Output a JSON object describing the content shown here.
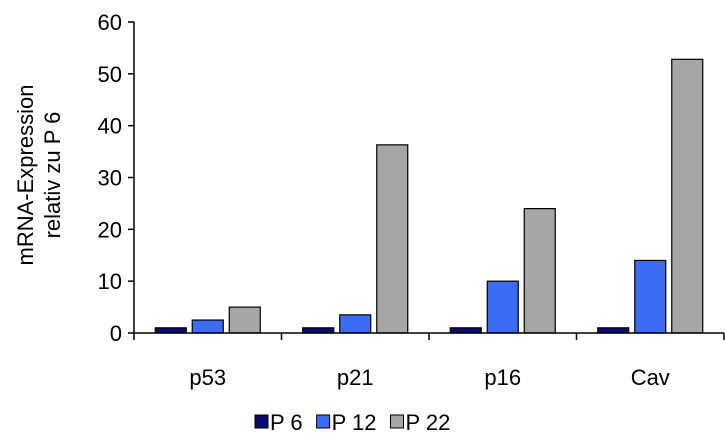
{
  "chart_data": {
    "type": "bar",
    "categories": [
      "p53",
      "p21",
      "p16",
      "Cav"
    ],
    "series": [
      {
        "name": "P 6",
        "values": [
          1,
          1,
          1,
          1
        ],
        "color": "#0a0a6e"
      },
      {
        "name": "P 12",
        "values": [
          2.5,
          3.5,
          10,
          14
        ],
        "color": "#3a6cf4"
      },
      {
        "name": "P 22",
        "values": [
          5,
          36.3,
          24,
          52.8
        ],
        "color": "#a6a6a6"
      }
    ],
    "ylabel_lines": [
      "mRNA-Expression",
      "relativ zu P 6"
    ],
    "ylim": [
      0,
      60
    ],
    "yticks": [
      "0",
      "10",
      "20",
      "30",
      "40",
      "50",
      "60"
    ],
    "legend_position": "bottom-center",
    "grid": false
  }
}
